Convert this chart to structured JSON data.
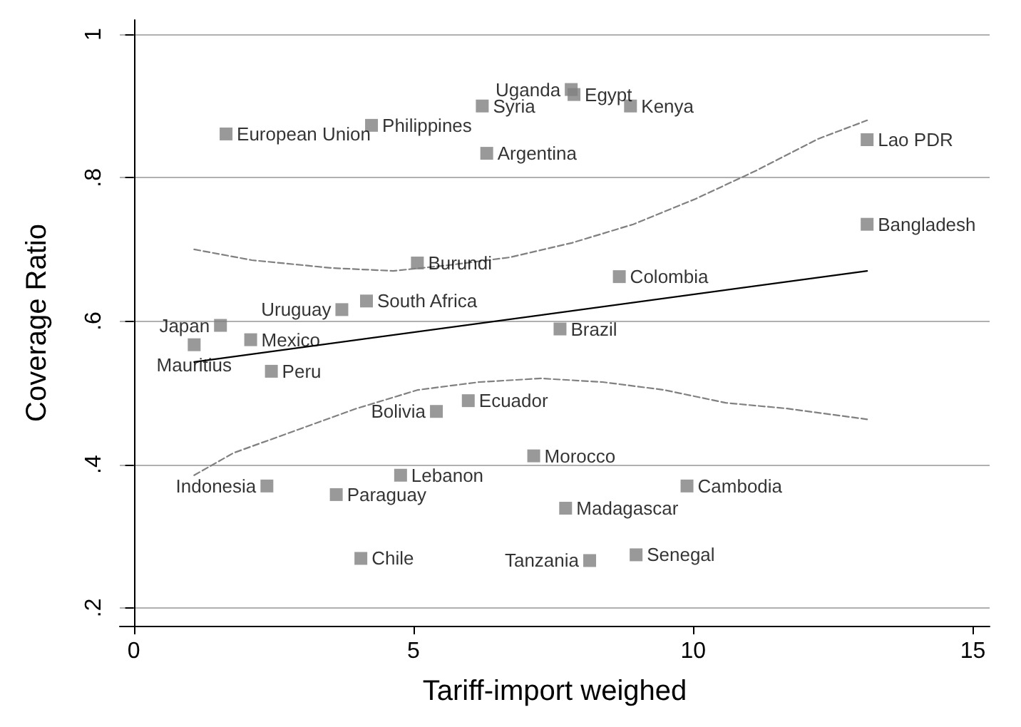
{
  "chart_data": {
    "type": "scatter",
    "xlabel": "Tariff-import weighed",
    "ylabel": "Coverage Ratio",
    "xlim": [
      -0.25,
      15.3
    ],
    "ylim": [
      0.175,
      1.02
    ],
    "xticks": [
      0,
      5,
      10,
      15
    ],
    "yticks": [
      {
        "value": 0.2,
        "label": ".2"
      },
      {
        "value": 0.4,
        "label": ".4"
      },
      {
        "value": 0.6,
        "label": ".6"
      },
      {
        "value": 0.8,
        "label": ".8"
      },
      1
    ],
    "grid": "y",
    "marker": "square",
    "series": [
      {
        "color": "#808080",
        "x": [
          7.82,
          7.87,
          8.88,
          6.23,
          4.25,
          1.65,
          6.31,
          13.11,
          13.11,
          5.07,
          8.68,
          4.16,
          3.72,
          1.55,
          7.62,
          1.08,
          2.09,
          2.46,
          5.98,
          5.41,
          7.15,
          4.77,
          2.38,
          3.62,
          9.89,
          7.72,
          4.06,
          8.15,
          8.98
        ],
        "values": [
          0.923,
          0.916,
          0.9,
          0.9,
          0.873,
          0.861,
          0.834,
          0.853,
          0.735,
          0.681,
          0.662,
          0.628,
          0.616,
          0.594,
          0.589,
          0.567,
          0.574,
          0.53,
          0.489,
          0.474,
          0.412,
          0.385,
          0.37,
          0.358,
          0.37,
          0.339,
          0.269,
          0.266,
          0.274
        ],
        "value_labels": [
          "Uganda",
          "Egypt",
          "Kenya",
          "Syria",
          "Philippines",
          "European Union",
          "Argentina",
          "Lao PDR",
          "Bangladesh",
          "Burundi",
          "Colombia",
          "South Africa",
          "Uruguay",
          "Japan",
          "Brazil",
          "Mauritius",
          "Mexico",
          "Peru",
          "Ecuador",
          "Bolivia",
          "Morocco",
          "Lebanon",
          "Indonesia",
          "Paraguay",
          "Cambodia",
          "Madagascar",
          "Chile",
          "Tanzania",
          "Senegal"
        ]
      },
      {
        "type": "line",
        "marker": "none",
        "color": "#000000",
        "line_style": "solid",
        "x": [
          1.08,
          13.11
        ],
        "values": [
          0.543,
          0.67
        ]
      },
      {
        "type": "line",
        "marker": "none",
        "color": "#808080",
        "line_style": "dashed",
        "x": [
          1.08,
          2.11,
          3.54,
          4.64,
          5.63,
          6.73,
          7.83,
          8.93,
          10.03,
          11.13,
          12.23,
          13.11
        ],
        "values": [
          0.7,
          0.685,
          0.674,
          0.67,
          0.678,
          0.689,
          0.709,
          0.735,
          0.77,
          0.81,
          0.854,
          0.88
        ]
      },
      {
        "type": "line",
        "marker": "none",
        "color": "#808080",
        "line_style": "dashed",
        "x": [
          1.08,
          1.78,
          2.88,
          3.98,
          5.08,
          6.18,
          7.28,
          8.38,
          9.48,
          10.58,
          11.68,
          13.11
        ],
        "values": [
          0.385,
          0.416,
          0.447,
          0.478,
          0.504,
          0.515,
          0.52,
          0.515,
          0.504,
          0.486,
          0.478,
          0.463
        ]
      }
    ]
  }
}
